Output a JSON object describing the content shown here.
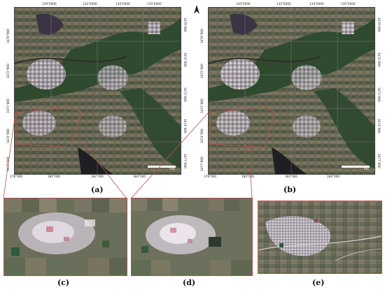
{
  "captions": {
    "a": "(a)",
    "b": "(b)",
    "c": "(c)",
    "d": "(d)",
    "e": "(e)"
  },
  "map_a": {
    "top_ticks": [
      "139°E000",
      "132°E000",
      "134°E000",
      "135°E000"
    ],
    "bottom_ticks": [
      "178°000",
      "180°000",
      "182°000",
      "184°000"
    ],
    "left_ticks": [
      "3479°000",
      "3472°000",
      "3471°000",
      "3474°000",
      "3477°000"
    ],
    "right_ticks": [
      "3479°000",
      "3472°000",
      "3471°000",
      "3474°000",
      "3477°000"
    ],
    "scale_label": "Km"
  },
  "map_b": {
    "top_ticks": [
      "130°E000",
      "132°E000",
      "134°E000",
      "135°E000"
    ],
    "bottom_ticks": [
      "178°000",
      "180°000",
      "182°000",
      "184°000"
    ],
    "left_ticks": [
      "3479°000",
      "3472°000",
      "3471°000",
      "3474°000",
      "3477°000"
    ],
    "right_ticks": [
      "3479°000",
      "3472°000",
      "3471°000",
      "3474°000",
      "3477°000"
    ],
    "scale_label": "Km",
    "north_symbol": "N"
  },
  "colors": {
    "vegetation": "#2f4a2e",
    "urban": "#c9c2cc",
    "farmland": "#6d6a52",
    "highlight_box": "#b4544d"
  }
}
